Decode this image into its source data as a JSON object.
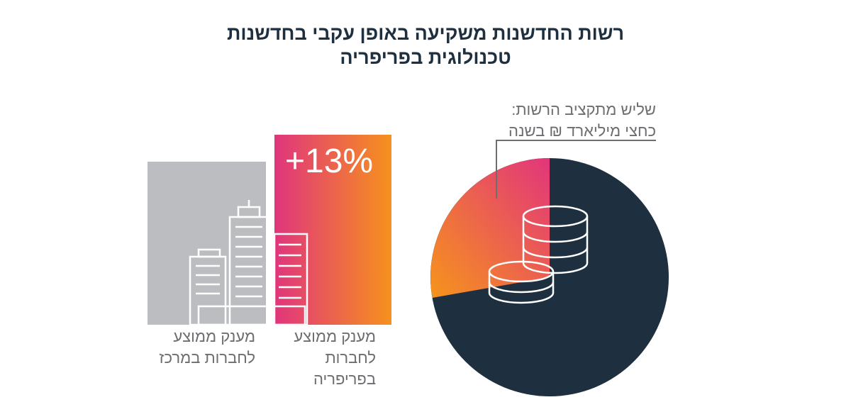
{
  "title": [
    "רשות החדשנות משקיעה באופן עקבי בחדשנות",
    "טכנולוגית בפריפריה"
  ],
  "bar_label": "+13%",
  "captions": {
    "periphery": [
      "מענק ממוצע",
      "לחברות",
      "בפריפריה"
    ],
    "center": [
      "מענק ממוצע",
      "לחברות במרכז"
    ]
  },
  "annotation": [
    "שליש מתקציב הרשות:",
    "כחצי מיליארד ₪ בשנה"
  ]
}
